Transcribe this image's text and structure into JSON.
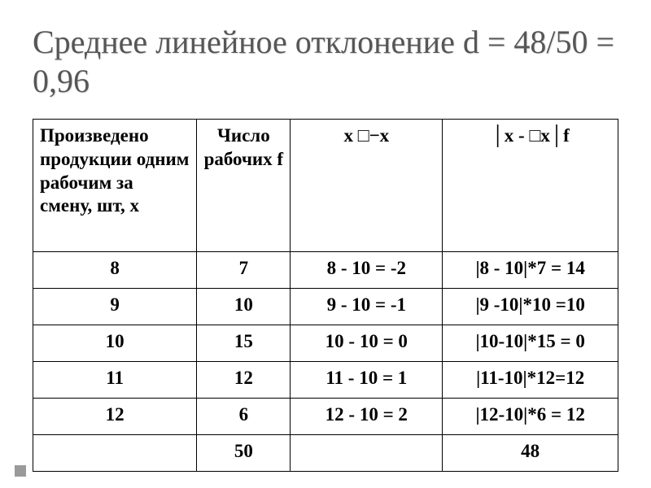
{
  "title": "Среднее линейное отклонение d = 48/50 = 0,96",
  "table": {
    "col_widths_pct": [
      28,
      16,
      26,
      30
    ],
    "headers": [
      "Произведено продукции одним рабочим за смену, шт, х",
      "Число рабочих f",
      "x □−x",
      "│x - □x│f"
    ],
    "rows": [
      [
        "8",
        "7",
        "8 - 10 = -2",
        "|8 - 10|*7 = 14"
      ],
      [
        "9",
        "10",
        "9 - 10 = -1",
        "|9 -10|*10 =10"
      ],
      [
        "10",
        "15",
        "10 - 10 = 0",
        "|10-10|*15 = 0"
      ],
      [
        "11",
        "12",
        "11 - 10 = 1",
        "|11-10|*12=12"
      ],
      [
        "12",
        "6",
        "12 - 10 = 2",
        "|12-10|*6 = 12"
      ],
      [
        "",
        "50",
        "",
        "48"
      ]
    ]
  },
  "colors": {
    "title": "#565656",
    "text": "#000000",
    "border": "#000000",
    "footer_mark": "#9a9a9a",
    "background": "#ffffff"
  }
}
